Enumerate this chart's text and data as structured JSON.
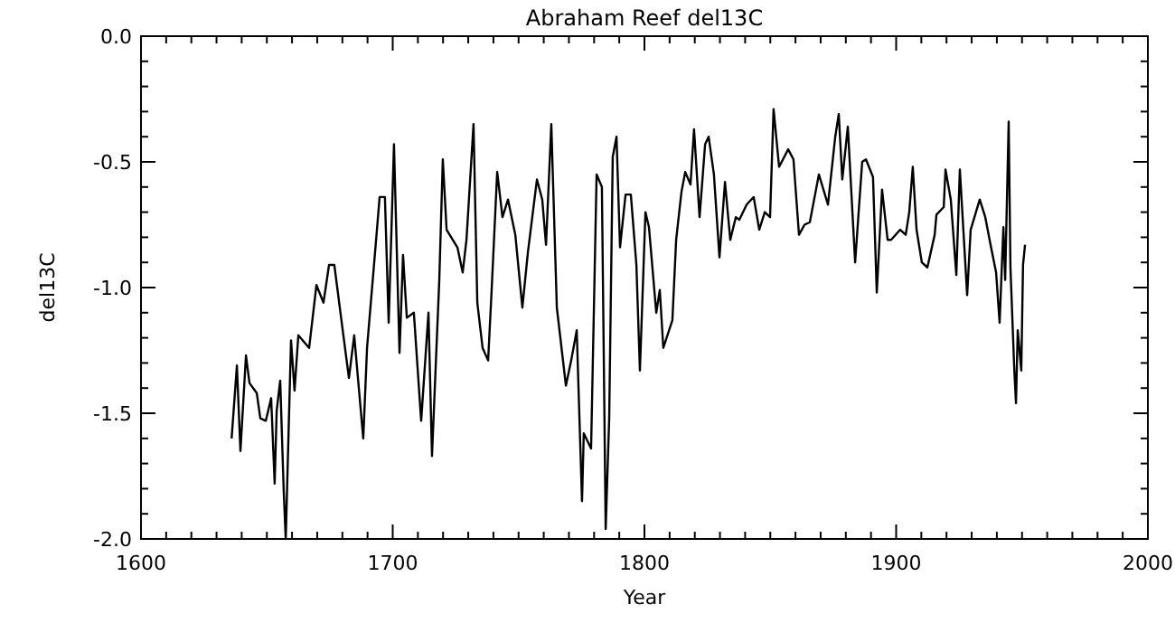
{
  "chart_data": {
    "type": "line",
    "title": "Abraham Reef del13C",
    "xlabel": "Year",
    "ylabel": "del13C",
    "color": "#000000",
    "grid": false,
    "marker": "none",
    "line_style": "solid",
    "x": [
      1636,
      1638.1,
      1639.5,
      1641.7,
      1643.1,
      1646,
      1647.4,
      1649.6,
      1651.7,
      1653.1,
      1653.9,
      1655.3,
      1656.7,
      1657.5,
      1659.6,
      1661,
      1662.5,
      1666.8,
      1669.7,
      1672.5,
      1674.7,
      1676.8,
      1680.4,
      1682.6,
      1684.7,
      1688.3,
      1689.8,
      1693.4,
      1694.8,
      1696.9,
      1698.4,
      1700.5,
      1702.7,
      1704.1,
      1705.6,
      1708.4,
      1711.3,
      1714.2,
      1715.6,
      1718.5,
      1719.9,
      1721.4,
      1725.7,
      1727.8,
      1729.3,
      1732.1,
      1733.6,
      1735.7,
      1737.9,
      1739.3,
      1741.5,
      1743.6,
      1745.8,
      1748.7,
      1751.5,
      1753.7,
      1757.3,
      1759.4,
      1760.9,
      1763,
      1765.2,
      1768.8,
      1770.9,
      1773.1,
      1775.2,
      1775.9,
      1778.8,
      1781,
      1783.1,
      1784.6,
      1786,
      1787.4,
      1788.9,
      1790.3,
      1792.5,
      1794.6,
      1796.8,
      1798.2,
      1800.4,
      1801.8,
      1804.7,
      1806.1,
      1807.5,
      1811.1,
      1812.6,
      1814.7,
      1816.2,
      1818.3,
      1819.7,
      1821.9,
      1824.1,
      1825.5,
      1827.6,
      1829.8,
      1832,
      1834.1,
      1836.3,
      1837.7,
      1840.6,
      1843.4,
      1845.6,
      1847.8,
      1849.9,
      1851.3,
      1853.5,
      1857.1,
      1859.2,
      1861.4,
      1863.6,
      1865.7,
      1869.3,
      1872.9,
      1875.8,
      1877.2,
      1878.6,
      1880.8,
      1883.7,
      1886.5,
      1888,
      1890.8,
      1892.3,
      1894.4,
      1896.6,
      1898,
      1901.6,
      1903.8,
      1905.2,
      1906.6,
      1908.1,
      1910.2,
      1912.4,
      1915.3,
      1916,
      1918.9,
      1919.6,
      1921.7,
      1923.9,
      1925.3,
      1928.2,
      1929.6,
      1933.2,
      1935.4,
      1937.5,
      1939.7,
      1941.1,
      1942.6,
      1943.3,
      1944.7,
      1945.4,
      1946.9,
      1947.6,
      1948.3,
      1949.7,
      1950.4,
      1951.2
    ],
    "values": [
      -1.6,
      -1.31,
      -1.65,
      -1.27,
      -1.38,
      -1.42,
      -1.52,
      -1.53,
      -1.44,
      -1.78,
      -1.49,
      -1.37,
      -1.81,
      -2.0,
      -1.21,
      -1.41,
      -1.19,
      -1.24,
      -0.99,
      -1.06,
      -0.91,
      -0.91,
      -1.19,
      -1.36,
      -1.19,
      -1.6,
      -1.24,
      -0.81,
      -0.64,
      -0.64,
      -1.14,
      -0.43,
      -1.26,
      -0.87,
      -1.12,
      -1.1,
      -1.53,
      -1.1,
      -1.67,
      -0.97,
      -0.49,
      -0.77,
      -0.84,
      -0.94,
      -0.81,
      -0.35,
      -1.06,
      -1.24,
      -1.29,
      -1.01,
      -0.54,
      -0.72,
      -0.65,
      -0.79,
      -1.08,
      -0.86,
      -0.57,
      -0.65,
      -0.83,
      -0.35,
      -1.08,
      -1.39,
      -1.29,
      -1.17,
      -1.85,
      -1.58,
      -1.64,
      -0.55,
      -0.6,
      -1.96,
      -1.52,
      -0.48,
      -0.4,
      -0.84,
      -0.63,
      -0.63,
      -0.91,
      -1.33,
      -0.7,
      -0.76,
      -1.1,
      -1.01,
      -1.24,
      -1.13,
      -0.81,
      -0.62,
      -0.54,
      -0.59,
      -0.37,
      -0.72,
      -0.43,
      -0.4,
      -0.55,
      -0.88,
      -0.58,
      -0.81,
      -0.72,
      -0.73,
      -0.67,
      -0.64,
      -0.77,
      -0.7,
      -0.72,
      -0.29,
      -0.52,
      -0.45,
      -0.49,
      -0.79,
      -0.75,
      -0.74,
      -0.55,
      -0.67,
      -0.4,
      -0.31,
      -0.57,
      -0.36,
      -0.9,
      -0.5,
      -0.49,
      -0.56,
      -1.02,
      -0.61,
      -0.81,
      -0.81,
      -0.77,
      -0.79,
      -0.7,
      -0.52,
      -0.77,
      -0.9,
      -0.92,
      -0.79,
      -0.71,
      -0.68,
      -0.53,
      -0.65,
      -0.95,
      -0.53,
      -1.03,
      -0.77,
      -0.65,
      -0.72,
      -0.83,
      -0.94,
      -1.14,
      -0.76,
      -0.97,
      -0.34,
      -0.92,
      -1.32,
      -1.46,
      -1.17,
      -1.33,
      -0.91,
      -0.83
    ],
    "xlim": [
      1600,
      2000
    ],
    "ylim": [
      -2,
      0
    ],
    "xticks": [
      1600,
      {
        "value": 1610,
        "label": null
      },
      {
        "value": 1620,
        "label": null
      },
      {
        "value": 1630,
        "label": null
      },
      {
        "value": 1640,
        "label": null
      },
      {
        "value": 1650,
        "label": null
      },
      {
        "value": 1660,
        "label": null
      },
      {
        "value": 1670,
        "label": null
      },
      {
        "value": 1680,
        "label": null
      },
      {
        "value": 1690,
        "label": null
      },
      1700,
      {
        "value": 1710,
        "label": null
      },
      {
        "value": 1720,
        "label": null
      },
      {
        "value": 1730,
        "label": null
      },
      {
        "value": 1740,
        "label": null
      },
      {
        "value": 1750,
        "label": null
      },
      {
        "value": 1760,
        "label": null
      },
      {
        "value": 1770,
        "label": null
      },
      {
        "value": 1780,
        "label": null
      },
      {
        "value": 1790,
        "label": null
      },
      1800,
      {
        "value": 1810,
        "label": null
      },
      {
        "value": 1820,
        "label": null
      },
      {
        "value": 1830,
        "label": null
      },
      {
        "value": 1840,
        "label": null
      },
      {
        "value": 1850,
        "label": null
      },
      {
        "value": 1860,
        "label": null
      },
      {
        "value": 1870,
        "label": null
      },
      {
        "value": 1880,
        "label": null
      },
      {
        "value": 1890,
        "label": null
      },
      1900,
      {
        "value": 1910,
        "label": null
      },
      {
        "value": 1920,
        "label": null
      },
      {
        "value": 1930,
        "label": null
      },
      {
        "value": 1940,
        "label": null
      },
      {
        "value": 1950,
        "label": null
      },
      {
        "value": 1960,
        "label": null
      },
      {
        "value": 1970,
        "label": null
      },
      {
        "value": 1980,
        "label": null
      },
      {
        "value": 1990,
        "label": null
      },
      2000
    ],
    "yticks": [
      {
        "value": -2,
        "label": "-2.0"
      },
      {
        "value": -1.9,
        "label": null
      },
      {
        "value": -1.8,
        "label": null
      },
      {
        "value": -1.7,
        "label": null
      },
      {
        "value": -1.6,
        "label": null
      },
      {
        "value": -1.5,
        "label": "-1.5"
      },
      {
        "value": -1.4,
        "label": null
      },
      {
        "value": -1.3,
        "label": null
      },
      {
        "value": -1.2,
        "label": null
      },
      {
        "value": -1.1,
        "label": null
      },
      {
        "value": -1,
        "label": "-1.0"
      },
      {
        "value": -0.9,
        "label": null
      },
      {
        "value": -0.8,
        "label": null
      },
      {
        "value": -0.7,
        "label": null
      },
      {
        "value": -0.6,
        "label": null
      },
      {
        "value": -0.5,
        "label": "-0.5"
      },
      {
        "value": -0.4,
        "label": null
      },
      {
        "value": -0.3,
        "label": null
      },
      {
        "value": -0.2,
        "label": null
      },
      {
        "value": -0.1,
        "label": null
      },
      {
        "value": 0,
        "label": "0.0"
      }
    ]
  }
}
